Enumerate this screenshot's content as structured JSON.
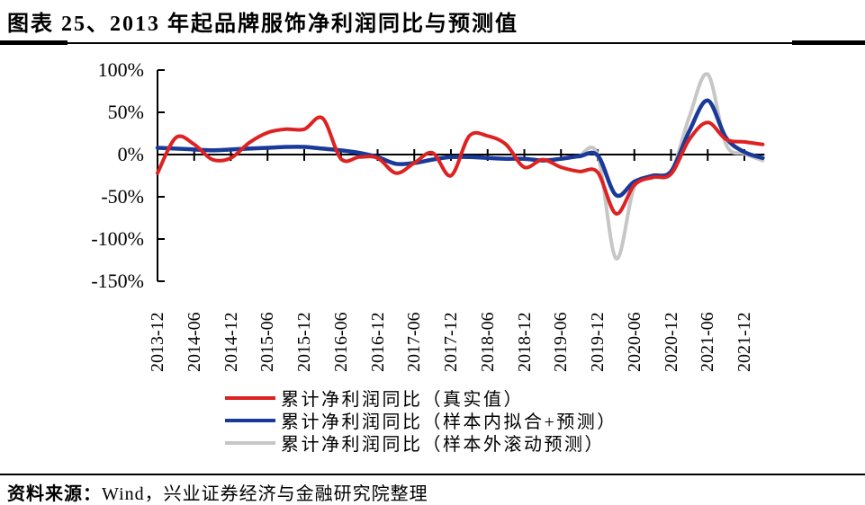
{
  "header": {
    "title": "图表 25、2013 年起品牌服饰净利润同比与预测值"
  },
  "footer": {
    "source_label": "资料来源：",
    "source_text": "Wind，兴业证券经济与金融研究院整理"
  },
  "chart_data": {
    "type": "line",
    "title": "2013 年起品牌服饰净利润同比与预测值",
    "xlabel": "",
    "ylabel": "",
    "ylim": [
      -150,
      100
    ],
    "grid": false,
    "legend_position": "bottom",
    "y_ticks": [
      {
        "value": 100,
        "label": "100%"
      },
      {
        "value": 50,
        "label": "50%"
      },
      {
        "value": 0,
        "label": "0%"
      },
      {
        "value": -50,
        "label": "-50%"
      },
      {
        "value": -100,
        "label": "-100%"
      },
      {
        "value": -150,
        "label": "-150%"
      }
    ],
    "x_tick_labels": [
      "2013-12",
      "2014-06",
      "2014-12",
      "2015-06",
      "2015-12",
      "2016-06",
      "2016-12",
      "2017-06",
      "2017-12",
      "2018-06",
      "2018-12",
      "2019-06",
      "2019-12",
      "2020-06",
      "2020-12",
      "2021-06",
      "2021-12"
    ],
    "x": [
      "2013-12",
      "2014-03",
      "2014-06",
      "2014-09",
      "2014-12",
      "2015-03",
      "2015-06",
      "2015-09",
      "2015-12",
      "2016-03",
      "2016-06",
      "2016-09",
      "2016-12",
      "2017-03",
      "2017-06",
      "2017-09",
      "2017-12",
      "2018-03",
      "2018-06",
      "2018-09",
      "2018-12",
      "2019-03",
      "2019-06",
      "2019-09",
      "2019-12",
      "2020-03",
      "2020-06",
      "2020-09",
      "2020-12",
      "2021-03",
      "2021-06",
      "2021-09",
      "2021-12",
      "2022-03"
    ],
    "series": [
      {
        "name": "累计净利润同比（真实值）",
        "color": "#dd2222",
        "width": 4,
        "start_index": 0,
        "values": [
          -22,
          20,
          12,
          -6,
          -4,
          14,
          26,
          30,
          30,
          43,
          -5,
          -3,
          -4,
          -22,
          -10,
          2,
          -25,
          22,
          22,
          12,
          -15,
          -6,
          -15,
          -20,
          -21,
          -70,
          -36,
          -27,
          -23,
          18,
          38,
          18,
          15,
          12
        ]
      },
      {
        "name": "累计净利润同比（样本内拟合+预测）",
        "color": "#1a3a99",
        "width": 4.5,
        "start_index": 0,
        "values": [
          8,
          7,
          6,
          5,
          6,
          7,
          8,
          9,
          9,
          7,
          5,
          2,
          -3,
          -11,
          -10,
          -6,
          -3,
          -3,
          -4,
          -5,
          -5,
          -7,
          -5,
          -2,
          -1,
          -48,
          -32,
          -25,
          -20,
          28,
          64,
          20,
          3,
          -4
        ]
      },
      {
        "name": "累计净利润同比（样本外滚动预测）",
        "color": "#c6c6c6",
        "width": 4,
        "start_index": 23,
        "values": [
          -2,
          0,
          -123,
          -38,
          -27,
          -21,
          45,
          95,
          12,
          1,
          -7
        ]
      }
    ]
  }
}
